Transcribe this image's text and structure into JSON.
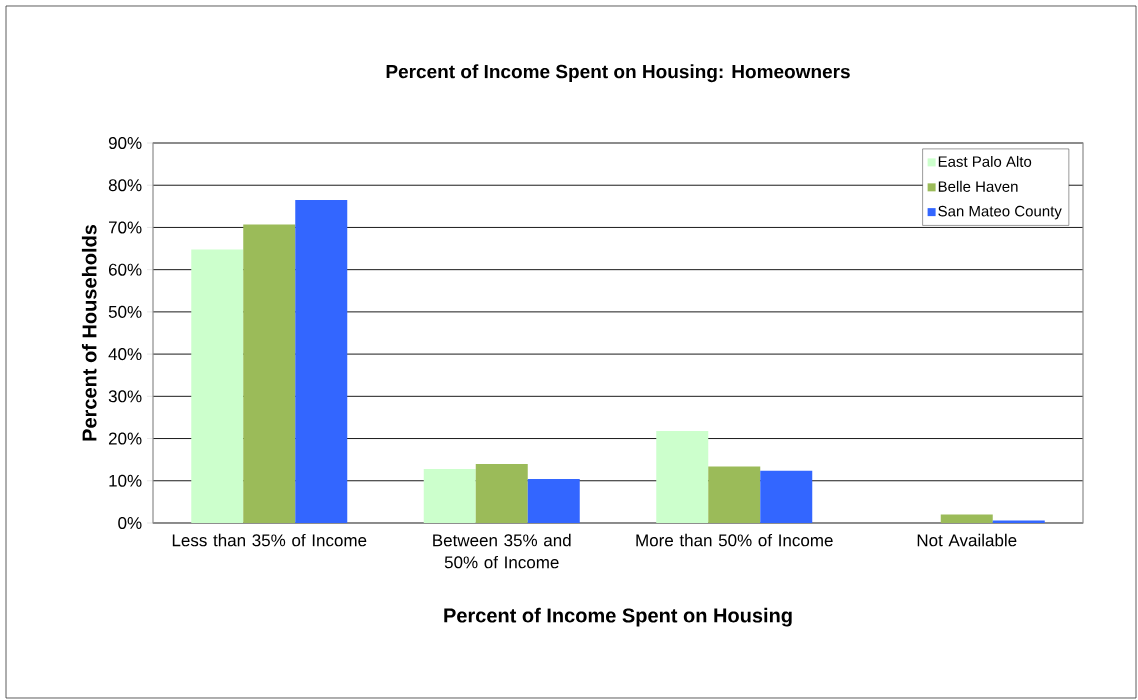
{
  "chart_data": {
    "type": "bar",
    "title": "Percent of Income  Spent on Housing: Homeowners",
    "xlabel": "Percent of Income  Spent on Housing",
    "ylabel": "Percent of Households",
    "categories": [
      "Less than 35% of Income",
      "Between 35% and 50% of Income",
      "More than 50% of Income",
      "Not Available"
    ],
    "series": [
      {
        "name": "East Palo Alto",
        "color": "#ccffcc",
        "values": [
          64.8,
          12.8,
          21.8,
          null
        ]
      },
      {
        "name": "Belle Haven",
        "color": "#9bbb59",
        "values": [
          70.7,
          14.0,
          13.4,
          2.0
        ]
      },
      {
        "name": "San Mateo County",
        "color": "#3366ff",
        "values": [
          76.5,
          10.4,
          12.4,
          0.6
        ]
      }
    ],
    "ylim": [
      0,
      90
    ],
    "yticks": [
      {
        "value": 0,
        "label": "0%"
      },
      {
        "value": 10,
        "label": "10%"
      },
      {
        "value": 20,
        "label": "20%"
      },
      {
        "value": 30,
        "label": "30%"
      },
      {
        "value": 40,
        "label": "40%"
      },
      {
        "value": 50,
        "label": "50%"
      },
      {
        "value": 60,
        "label": "60%"
      },
      {
        "value": 70,
        "label": "70%"
      },
      {
        "value": 80,
        "label": "80%"
      },
      {
        "value": 90,
        "label": "90%"
      }
    ],
    "grid": "y",
    "legend": "top right"
  }
}
